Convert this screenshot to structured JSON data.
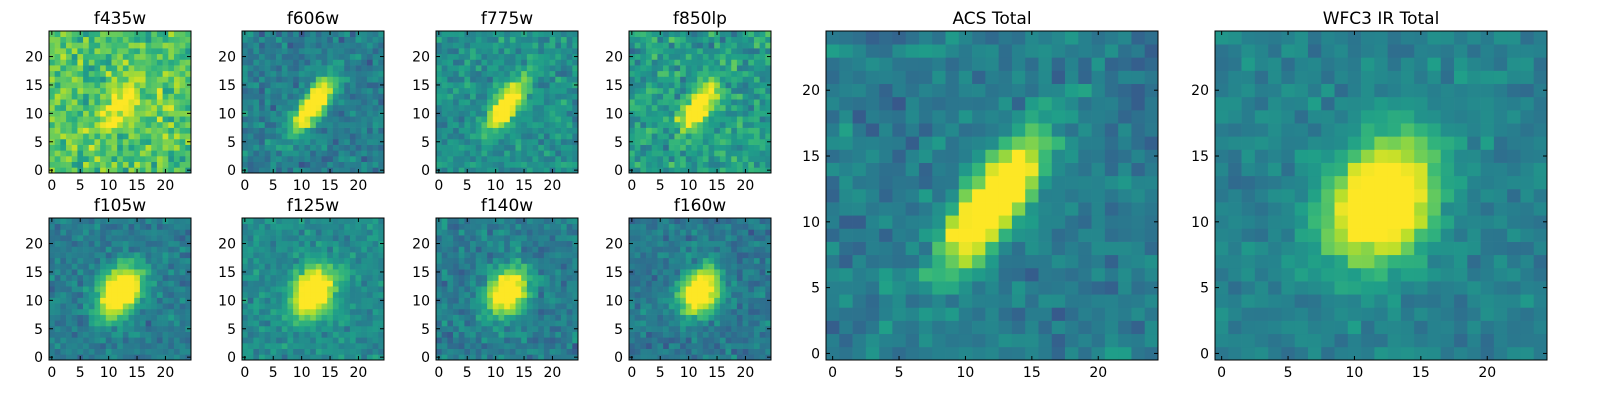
{
  "figure": {
    "colormap": "viridis",
    "colormap_stops": [
      "#440154",
      "#482878",
      "#3e4989",
      "#31688e",
      "#26828e",
      "#1f9e89",
      "#35b779",
      "#6ece58",
      "#b5de2b",
      "#fde725"
    ],
    "frame_color": "#000000"
  },
  "chart_data": [
    {
      "type": "heatmap",
      "title": "f435w",
      "grid": false,
      "xlim": [
        -0.5,
        24.5
      ],
      "ylim": [
        -0.5,
        24.5
      ],
      "xticks": [
        0,
        5,
        10,
        15,
        20
      ],
      "yticks": [
        0,
        5,
        10,
        15,
        20
      ],
      "xtick_labels": [
        "0",
        "5",
        "10",
        "15",
        "20"
      ],
      "ytick_labels": [
        "0",
        "5",
        "10",
        "15",
        "20"
      ],
      "source": {
        "center": [
          12,
          11.5
        ],
        "sigma_major": 3.4,
        "sigma_minor": 1.5,
        "angle_deg": 55,
        "peak": 0.78,
        "background": 0.72,
        "noise": 0.28
      }
    },
    {
      "type": "heatmap",
      "title": "f606w",
      "grid": false,
      "xlim": [
        -0.5,
        24.5
      ],
      "ylim": [
        -0.5,
        24.5
      ],
      "xticks": [
        0,
        5,
        10,
        15,
        20
      ],
      "yticks": [
        0,
        5,
        10,
        15,
        20
      ],
      "xtick_labels": [
        "0",
        "5",
        "10",
        "15",
        "20"
      ],
      "ytick_labels": [
        "0",
        "5",
        "10",
        "15",
        "20"
      ],
      "source": {
        "center": [
          12,
          11.5
        ],
        "sigma_major": 3.8,
        "sigma_minor": 1.3,
        "angle_deg": 55,
        "peak": 0.98,
        "background": 0.42,
        "noise": 0.2
      }
    },
    {
      "type": "heatmap",
      "title": "f775w",
      "grid": false,
      "xlim": [
        -0.5,
        24.5
      ],
      "ylim": [
        -0.5,
        24.5
      ],
      "xticks": [
        0,
        5,
        10,
        15,
        20
      ],
      "yticks": [
        0,
        5,
        10,
        15,
        20
      ],
      "xtick_labels": [
        "0",
        "5",
        "10",
        "15",
        "20"
      ],
      "ytick_labels": [
        "0",
        "5",
        "10",
        "15",
        "20"
      ],
      "source": {
        "center": [
          12,
          11.5
        ],
        "sigma_major": 3.6,
        "sigma_minor": 1.4,
        "angle_deg": 55,
        "peak": 0.92,
        "background": 0.5,
        "noise": 0.2
      }
    },
    {
      "type": "heatmap",
      "title": "f850lp",
      "grid": false,
      "xlim": [
        -0.5,
        24.5
      ],
      "ylim": [
        -0.5,
        24.5
      ],
      "xticks": [
        0,
        5,
        10,
        15,
        20
      ],
      "yticks": [
        0,
        5,
        10,
        15,
        20
      ],
      "xtick_labels": [
        "0",
        "5",
        "10",
        "15",
        "20"
      ],
      "ytick_labels": [
        "0",
        "5",
        "10",
        "15",
        "20"
      ],
      "source": {
        "center": [
          12,
          11.5
        ],
        "sigma_major": 3.6,
        "sigma_minor": 1.4,
        "angle_deg": 55,
        "peak": 0.95,
        "background": 0.55,
        "noise": 0.26
      }
    },
    {
      "type": "heatmap",
      "title": "f105w",
      "grid": false,
      "xlim": [
        -0.5,
        24.5
      ],
      "ylim": [
        -0.5,
        24.5
      ],
      "xticks": [
        0,
        5,
        10,
        15,
        20
      ],
      "yticks": [
        0,
        5,
        10,
        15,
        20
      ],
      "xtick_labels": [
        "0",
        "5",
        "10",
        "15",
        "20"
      ],
      "ytick_labels": [
        "0",
        "5",
        "10",
        "15",
        "20"
      ],
      "source": {
        "center": [
          12,
          11.5
        ],
        "sigma_major": 3.3,
        "sigma_minor": 2.3,
        "angle_deg": 60,
        "peak": 0.98,
        "background": 0.42,
        "noise": 0.17
      }
    },
    {
      "type": "heatmap",
      "title": "f125w",
      "grid": false,
      "xlim": [
        -0.5,
        24.5
      ],
      "ylim": [
        -0.5,
        24.5
      ],
      "xticks": [
        0,
        5,
        10,
        15,
        20
      ],
      "yticks": [
        0,
        5,
        10,
        15,
        20
      ],
      "xtick_labels": [
        "0",
        "5",
        "10",
        "15",
        "20"
      ],
      "ytick_labels": [
        "0",
        "5",
        "10",
        "15",
        "20"
      ],
      "source": {
        "center": [
          12,
          11.5
        ],
        "sigma_major": 3.3,
        "sigma_minor": 2.3,
        "angle_deg": 60,
        "peak": 0.96,
        "background": 0.48,
        "noise": 0.16
      }
    },
    {
      "type": "heatmap",
      "title": "f140w",
      "grid": false,
      "xlim": [
        -0.5,
        24.5
      ],
      "ylim": [
        -0.5,
        24.5
      ],
      "xticks": [
        0,
        5,
        10,
        15,
        20
      ],
      "yticks": [
        0,
        5,
        10,
        15,
        20
      ],
      "xtick_labels": [
        "0",
        "5",
        "10",
        "15",
        "20"
      ],
      "ytick_labels": [
        "0",
        "5",
        "10",
        "15",
        "20"
      ],
      "source": {
        "center": [
          12,
          11.5
        ],
        "sigma_major": 3.1,
        "sigma_minor": 2.2,
        "angle_deg": 60,
        "peak": 0.95,
        "background": 0.42,
        "noise": 0.18
      }
    },
    {
      "type": "heatmap",
      "title": "f160w",
      "grid": false,
      "xlim": [
        -0.5,
        24.5
      ],
      "ylim": [
        -0.5,
        24.5
      ],
      "xticks": [
        0,
        5,
        10,
        15,
        20
      ],
      "yticks": [
        0,
        5,
        10,
        15,
        20
      ],
      "xtick_labels": [
        "0",
        "5",
        "10",
        "15",
        "20"
      ],
      "ytick_labels": [
        "0",
        "5",
        "10",
        "15",
        "20"
      ],
      "source": {
        "center": [
          12,
          11.5
        ],
        "sigma_major": 3.0,
        "sigma_minor": 2.2,
        "angle_deg": 60,
        "peak": 0.95,
        "background": 0.4,
        "noise": 0.17
      }
    },
    {
      "type": "heatmap",
      "title": "ACS Total",
      "grid": false,
      "xlim": [
        -0.5,
        24.5
      ],
      "ylim": [
        -0.5,
        24.5
      ],
      "xticks": [
        0,
        5,
        10,
        15,
        20
      ],
      "yticks": [
        0,
        5,
        10,
        15,
        20
      ],
      "xtick_labels": [
        "0",
        "5",
        "10",
        "15",
        "20"
      ],
      "ytick_labels": [
        "0",
        "5",
        "10",
        "15",
        "20"
      ],
      "source": {
        "center": [
          12,
          11.5
        ],
        "sigma_major": 4.0,
        "sigma_minor": 1.4,
        "angle_deg": 55,
        "peak": 1.0,
        "background": 0.42,
        "noise": 0.17
      }
    },
    {
      "type": "heatmap",
      "title": "WFC3 IR Total",
      "grid": false,
      "xlim": [
        -0.5,
        24.5
      ],
      "ylim": [
        -0.5,
        24.5
      ],
      "xticks": [
        0,
        5,
        10,
        15,
        20
      ],
      "yticks": [
        0,
        5,
        10,
        15,
        20
      ],
      "xtick_labels": [
        "0",
        "5",
        "10",
        "15",
        "20"
      ],
      "ytick_labels": [
        "0",
        "5",
        "10",
        "15",
        "20"
      ],
      "source": {
        "center": [
          12,
          11.5
        ],
        "sigma_major": 3.4,
        "sigma_minor": 2.5,
        "angle_deg": 60,
        "peak": 1.0,
        "background": 0.44,
        "noise": 0.13
      }
    }
  ]
}
